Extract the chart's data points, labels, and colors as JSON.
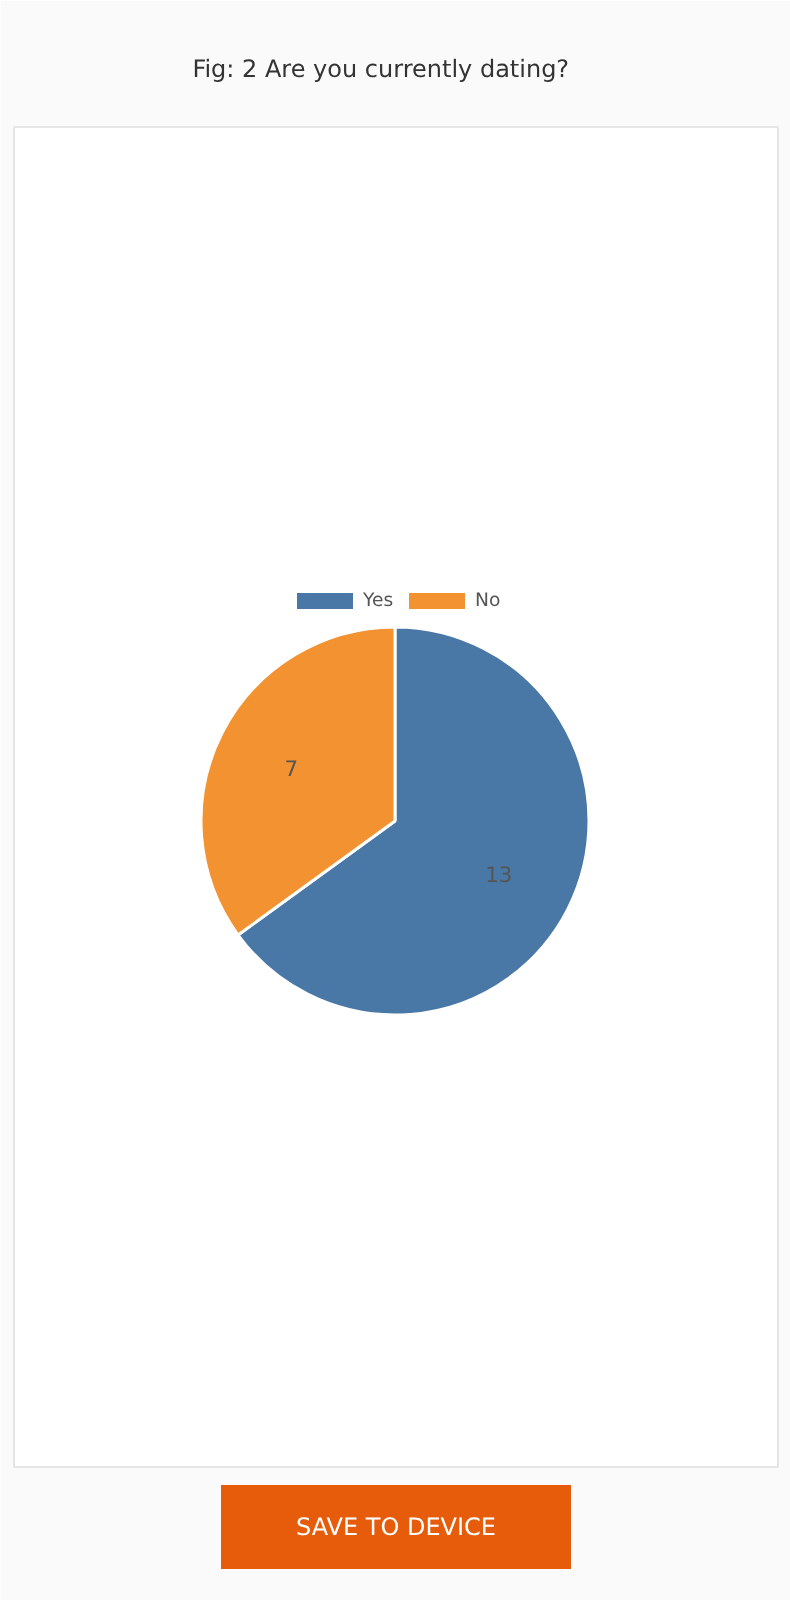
{
  "chart_data": {
    "type": "pie",
    "title": "Fig: 2     Are you currently dating?",
    "categories": [
      "Yes",
      "No"
    ],
    "values": [
      13,
      7
    ],
    "colors": [
      "#4a78a6",
      "#f29230"
    ],
    "data_labels": true,
    "legend": "top",
    "annotations": [
      "SAVE TO DEVICE"
    ]
  }
}
